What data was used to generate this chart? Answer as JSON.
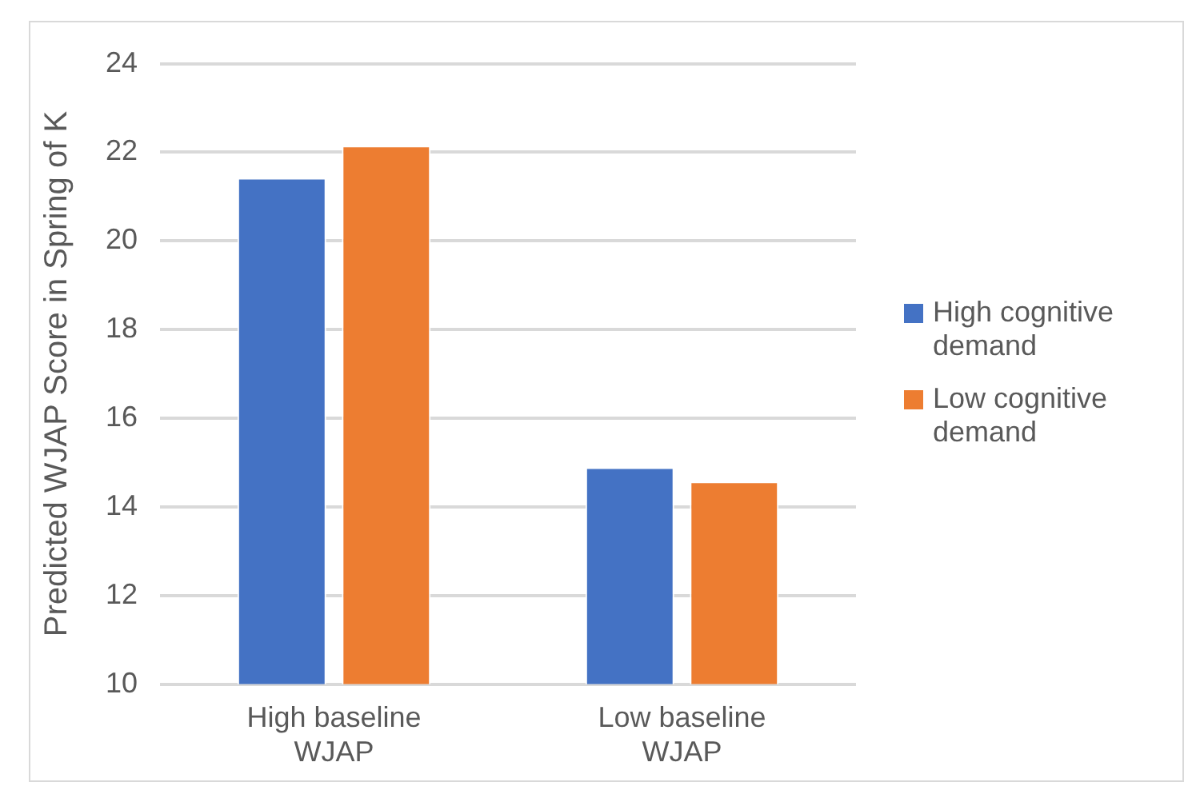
{
  "chart_data": {
    "type": "bar",
    "ylabel": "Predicted WJAP Score in Spring of K",
    "categories": [
      "High baseline WJAP",
      "Low baseline WJAP"
    ],
    "series": [
      {
        "name": "High cognitive demand",
        "color": "#4472c4",
        "values": [
          21.42,
          14.89
        ]
      },
      {
        "name": "Low cognitive demand",
        "color": "#ed7d31",
        "values": [
          22.15,
          14.57
        ]
      }
    ],
    "ylim": [
      10,
      24
    ],
    "yticks": [
      10,
      12,
      14,
      16,
      18,
      20,
      22,
      24
    ],
    "grid": "y",
    "legend": "right"
  }
}
